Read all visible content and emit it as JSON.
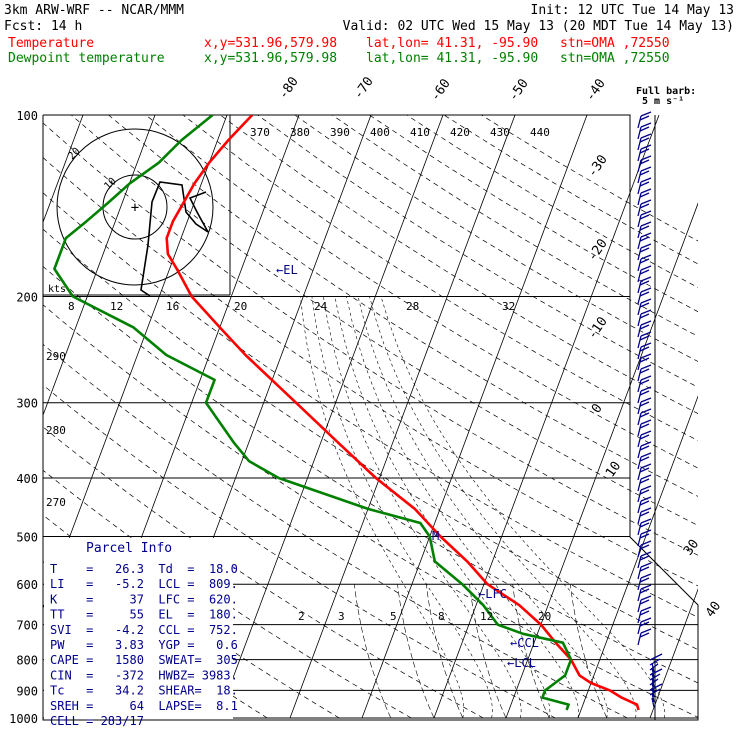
{
  "header": {
    "model": "3km ARW-WRF -- NCAR/MMM",
    "init": "Init: 12 UTC Tue 14 May 13",
    "fcst": "Fcst:    14 h",
    "valid": "Valid: 02 UTC Wed 15 May 13 (20 MDT Tue 14 May 13)",
    "temp_label": "Temperature",
    "dew_label": "Dewpoint temperature",
    "temp_xy": "x,y=531.96,579.98",
    "dew_xy": "x,y=531.96,579.98",
    "temp_latlon": "lat,lon= 41.31, -95.90",
    "dew_latlon": "lat,lon= 41.31, -95.90",
    "temp_stn": "stn=OMA ,72550",
    "dew_stn": "stn=OMA ,72550",
    "barb_note_1": "Full barb:",
    "barb_note_2": "5 m s⁻¹"
  },
  "colors": {
    "temperature": "#ff0000",
    "dewpoint": "#008000",
    "navy": "#00008b",
    "barbs": "#00008b"
  },
  "skewt": {
    "pressure_levels": [
      "100",
      "200",
      "300",
      "400",
      "500",
      "600",
      "700",
      "800",
      "900",
      "1000"
    ],
    "isotherm_labels": [
      "-80",
      "-70",
      "-60",
      "-50",
      "-40",
      "-30",
      "-20",
      "-10",
      "0",
      "10",
      "30",
      "40"
    ],
    "theta_e_labels": [
      "370",
      "380",
      "390",
      "400",
      "410",
      "420",
      "430",
      "440"
    ],
    "dry_adiabat_labels": [
      "290",
      "280",
      "270"
    ],
    "moist_adiabat_labels": [
      "8",
      "12",
      "16",
      "20",
      "24",
      "28",
      "32"
    ],
    "mixing_ratio_labels": [
      "2",
      "3",
      "5",
      "8",
      "12",
      "20"
    ],
    "el_label": "←EL",
    "lfc_label": "←LFC",
    "ccl_label": "←CCL",
    "lcl_label": "←LCL",
    "m_label": "M"
  },
  "hodograph": {
    "kts_label": "kts",
    "ring_labels": [
      "20",
      "10"
    ],
    "center_glyph": "+"
  },
  "parcel_info": {
    "title": "Parcel Info",
    "rows": [
      "T    =   26.3  Td  =  18.0",
      "LI   =   -5.2  LCL =  809.",
      "K    =     37  LFC =  620.",
      "TT   =     55  EL  =  180.",
      "SVI  =   -4.2  CCL =  752.",
      "PW   =   3.83  YGP =   0.6",
      "CAPE =   1580  SWEAT=  305",
      "CIN  =   -372  HWBZ= 3983.",
      "Tc   =   34.2  SHEAR=  18.",
      "SREH =     64  LAPSE=  8.1",
      "CELL = 283/17"
    ]
  },
  "chart_data": {
    "type": "line",
    "title": "",
    "xlabel": "",
    "ylabel": "",
    "y_scale": "log",
    "ylim": [
      1000,
      100
    ],
    "series": [
      {
        "name": "Temperature",
        "pressure": [
          970,
          950,
          925,
          900,
          875,
          850,
          800,
          750,
          700,
          650,
          600,
          550,
          500,
          450,
          400,
          350,
          300,
          250,
          225,
          200,
          180,
          170,
          160,
          150,
          140,
          130,
          120,
          110,
          100
        ],
        "temp_c": [
          28,
          27.5,
          25,
          23,
          20,
          18,
          16,
          13,
          10,
          6,
          0.5,
          -3.5,
          -8.5,
          -13.5,
          -20.5,
          -27.5,
          -35.5,
          -45,
          -50,
          -55.5,
          -59,
          -61,
          -62,
          -62,
          -61.5,
          -61,
          -60,
          -58.5,
          -56.5
        ]
      },
      {
        "name": "Dewpoint temperature",
        "pressure": [
          970,
          950,
          925,
          900,
          875,
          850,
          800,
          750,
          725,
          700,
          650,
          600,
          550,
          500,
          475,
          450,
          400,
          375,
          350,
          300,
          275,
          250,
          225,
          200,
          180,
          160,
          150,
          140,
          130,
          120,
          110,
          100
        ],
        "temp_c": [
          18,
          18,
          14,
          14,
          15,
          16,
          16,
          14,
          8,
          4,
          1,
          -3,
          -8,
          -10,
          -12,
          -20,
          -34,
          -39,
          -42,
          -48,
          -48,
          -56,
          -62,
          -72,
          -76,
          -76,
          -74,
          -72,
          -70,
          -67,
          -65,
          -62
        ]
      }
    ],
    "parcel": {
      "T": 26.3,
      "Td": 18.0,
      "LI": -5.2,
      "LCL": 809,
      "K": 37,
      "LFC": 620,
      "TT": 55,
      "EL": 180,
      "SVI": -4.2,
      "CCL": 752,
      "PW": 3.83,
      "YGP": 0.6,
      "CAPE": 1580,
      "SWEAT": 305,
      "CIN": -372,
      "HWBZ": 3983,
      "Tc": 34.2,
      "SHEAR": 18,
      "SREH": 64,
      "LAPSE": 8.1,
      "CELL": "283/17"
    }
  }
}
